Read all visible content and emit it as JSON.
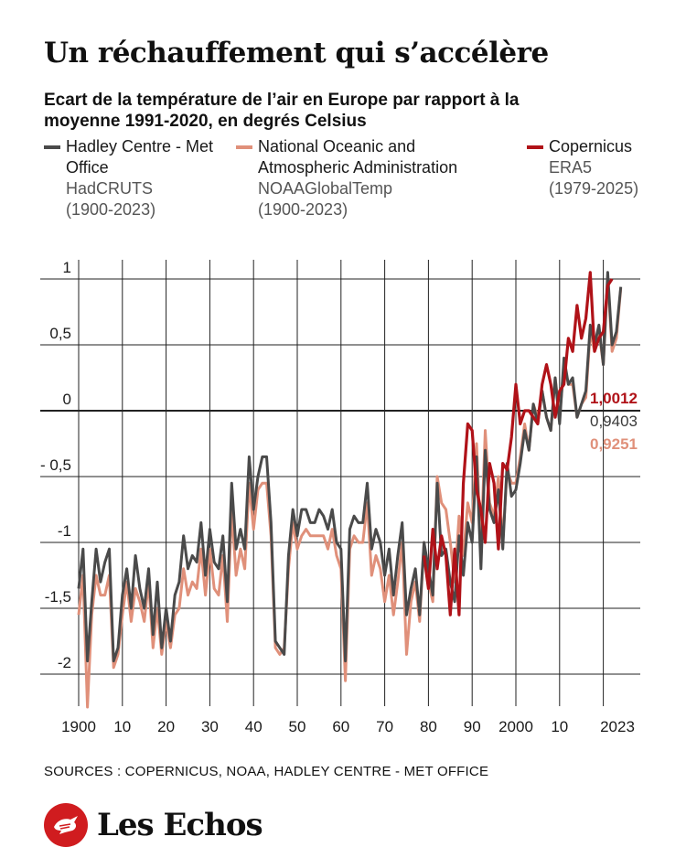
{
  "header": {
    "title": "Un réchauffement qui s’accélère",
    "subtitle": "Ecart de la température de l’air en Europe par rapport à la moyenne 1991-2020, en degrés Celsius"
  },
  "legend": [
    {
      "name": "Hadley Centre - Met Office",
      "dataset": "HadCRUTS",
      "period": "(1900-2023)",
      "color": "#4a4a4a"
    },
    {
      "name": "National Oceanic and Atmospheric Administration",
      "dataset": "NOAAGlobalTemp",
      "period": "(1900-2023)",
      "color": "#e0907a"
    },
    {
      "name": "Copernicus",
      "dataset": "ERA5",
      "period": "(1979-2025)",
      "color": "#b01218"
    }
  ],
  "end_labels": {
    "copernicus": "1,0012",
    "hadley": "0,9403",
    "noaa": "0,9251"
  },
  "footer": {
    "sources": "SOURCES : COPERNICUS, NOAA, HADLEY CENTRE - MET OFFICE",
    "brand": "Les Echos"
  },
  "chart_data": {
    "type": "line",
    "ylim": [
      -2.25,
      1.1
    ],
    "xlim": [
      1899,
      2025
    ],
    "yticks": [
      1,
      0.5,
      0,
      -0.5,
      -1,
      -1.5,
      -2
    ],
    "ytick_labels": [
      "1",
      "0,5",
      "0",
      "- 0,5",
      "-1",
      "-1,5",
      "-2"
    ],
    "xticks": [
      1900,
      1910,
      1920,
      1930,
      1940,
      1950,
      1960,
      1970,
      1980,
      1990,
      2000,
      2010,
      2023
    ],
    "xtick_labels": [
      "1900",
      "10",
      "20",
      "30",
      "40",
      "50",
      "60",
      "70",
      "80",
      "90",
      "2000",
      "10",
      "2023"
    ],
    "grid": true,
    "legend_position": "top",
    "series": [
      {
        "name": "Hadley Centre - Met Office",
        "color": "#4a4a4a",
        "x_start": 1900,
        "values": [
          -1.35,
          -1.05,
          -1.9,
          -1.45,
          -1.05,
          -1.3,
          -1.15,
          -1.05,
          -1.9,
          -1.8,
          -1.4,
          -1.2,
          -1.5,
          -1.1,
          -1.35,
          -1.5,
          -1.2,
          -1.7,
          -1.3,
          -1.8,
          -1.5,
          -1.75,
          -1.4,
          -1.3,
          -0.95,
          -1.2,
          -1.1,
          -1.15,
          -0.85,
          -1.25,
          -0.9,
          -1.15,
          -1.2,
          -0.95,
          -1.45,
          -0.55,
          -1.05,
          -0.9,
          -1.05,
          -0.35,
          -0.75,
          -0.5,
          -0.35,
          -0.35,
          -0.85,
          -1.75,
          -1.8,
          -1.85,
          -1.1,
          -0.75,
          -0.95,
          -0.75,
          -0.75,
          -0.85,
          -0.85,
          -0.75,
          -0.8,
          -0.9,
          -0.75,
          -1.0,
          -1.05,
          -1.9,
          -0.9,
          -0.8,
          -0.85,
          -0.85,
          -0.55,
          -1.05,
          -0.9,
          -1.0,
          -1.25,
          -1.05,
          -1.4,
          -1.1,
          -0.85,
          -1.55,
          -1.35,
          -1.2,
          -1.55,
          -1.0,
          -1.2,
          -1.4,
          -0.55,
          -1.1,
          -1.05,
          -1.3,
          -1.45,
          -0.95,
          -1.25,
          -0.85,
          -1.0,
          -0.35,
          -1.2,
          -0.3,
          -0.75,
          -0.85,
          -0.6,
          -1.05,
          -0.4,
          -0.65,
          -0.6,
          -0.4,
          -0.15,
          -0.3,
          0.05,
          -0.1,
          0.15,
          -0.05,
          -0.15,
          0.25,
          -0.1,
          0.4,
          0.2,
          0.25,
          -0.05,
          0.05,
          0.15,
          0.65,
          0.5,
          0.65,
          0.35,
          1.05,
          0.5,
          0.6,
          0.94
        ]
      },
      {
        "name": "National Oceanic and Atmospheric Administration",
        "color": "#e0907a",
        "x_start": 1900,
        "values": [
          -1.55,
          -1.25,
          -2.25,
          -1.55,
          -1.25,
          -1.4,
          -1.4,
          -1.25,
          -1.95,
          -1.85,
          -1.55,
          -1.3,
          -1.6,
          -1.35,
          -1.45,
          -1.6,
          -1.3,
          -1.8,
          -1.5,
          -1.85,
          -1.6,
          -1.8,
          -1.55,
          -1.5,
          -1.2,
          -1.4,
          -1.3,
          -1.35,
          -1.05,
          -1.4,
          -1.05,
          -1.35,
          -1.4,
          -1.1,
          -1.6,
          -0.75,
          -1.25,
          -1.05,
          -1.2,
          -0.55,
          -0.9,
          -0.6,
          -0.55,
          -0.55,
          -0.95,
          -1.8,
          -1.85,
          -1.8,
          -1.2,
          -0.85,
          -1.05,
          -0.95,
          -0.9,
          -0.95,
          -0.95,
          -0.95,
          -0.95,
          -1.05,
          -0.9,
          -1.1,
          -1.2,
          -2.05,
          -1.05,
          -0.95,
          -1.0,
          -1.0,
          -0.7,
          -1.25,
          -1.1,
          -1.2,
          -1.45,
          -1.25,
          -1.55,
          -1.3,
          -1.0,
          -1.85,
          -1.45,
          -1.3,
          -1.6,
          -1.0,
          -1.3,
          -1.45,
          -0.5,
          -0.7,
          -0.75,
          -1.0,
          -1.3,
          -0.8,
          -1.1,
          -0.7,
          -0.85,
          -0.25,
          -1.05,
          -0.15,
          -0.7,
          -0.8,
          -0.5,
          -1.0,
          -0.45,
          -0.55,
          -0.55,
          -0.35,
          -0.1,
          -0.3,
          0.05,
          -0.05,
          0.15,
          -0.05,
          -0.15,
          0.25,
          -0.05,
          0.35,
          0.2,
          0.2,
          -0.05,
          0.05,
          0.1,
          0.6,
          0.45,
          0.6,
          0.35,
          1.0,
          0.45,
          0.55,
          0.93
        ]
      },
      {
        "name": "Copernicus",
        "color": "#b01218",
        "x_start": 1979,
        "values": [
          -1.1,
          -1.35,
          -0.9,
          -1.2,
          -0.95,
          -1.1,
          -1.55,
          -1.05,
          -1.55,
          -0.55,
          -0.1,
          -0.15,
          -0.6,
          -0.75,
          -1.0,
          -0.4,
          -0.55,
          -1.05,
          -0.4,
          -0.45,
          -0.2,
          0.2,
          -0.1,
          0.0,
          0.0,
          -0.05,
          -0.1,
          0.2,
          0.35,
          0.2,
          -0.05,
          0.15,
          0.2,
          0.55,
          0.45,
          0.8,
          0.55,
          0.7,
          1.05,
          0.45,
          0.55,
          0.6,
          0.95,
          1.0
        ]
      }
    ]
  }
}
